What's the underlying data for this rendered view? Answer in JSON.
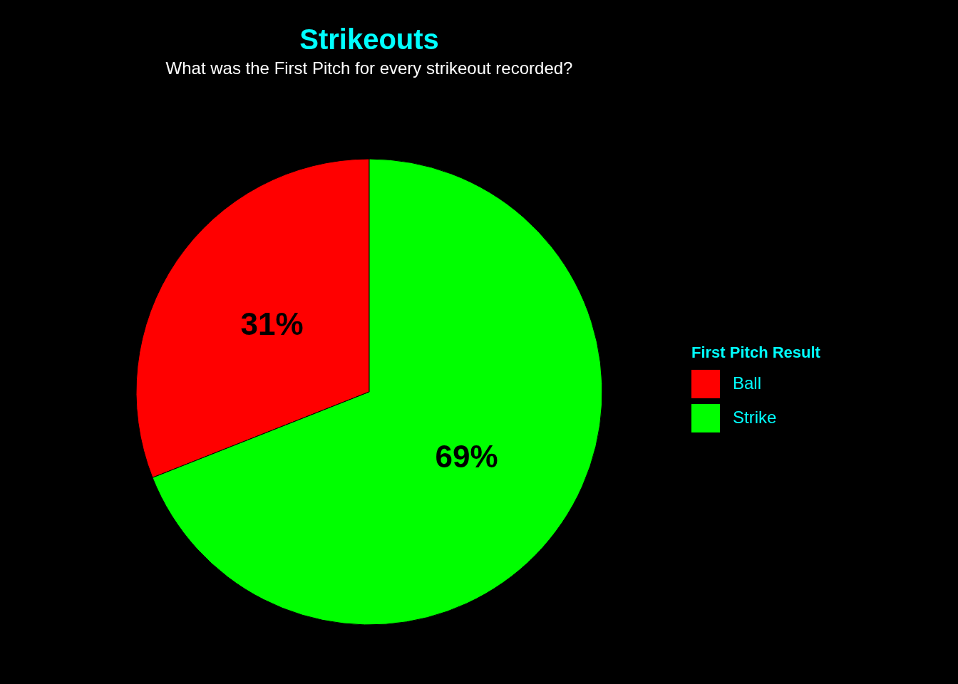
{
  "chart_data": {
    "type": "pie",
    "title": "Strikeouts",
    "subtitle": "What was the First Pitch for every strikeout recorded?",
    "legend_title": "First Pitch Result",
    "legend": "right",
    "categories": [
      "Ball",
      "Strike"
    ],
    "values": [
      31,
      69
    ],
    "colors": [
      "#ff0000",
      "#00ff00"
    ],
    "value_labels": [
      "31%",
      "69%"
    ]
  }
}
